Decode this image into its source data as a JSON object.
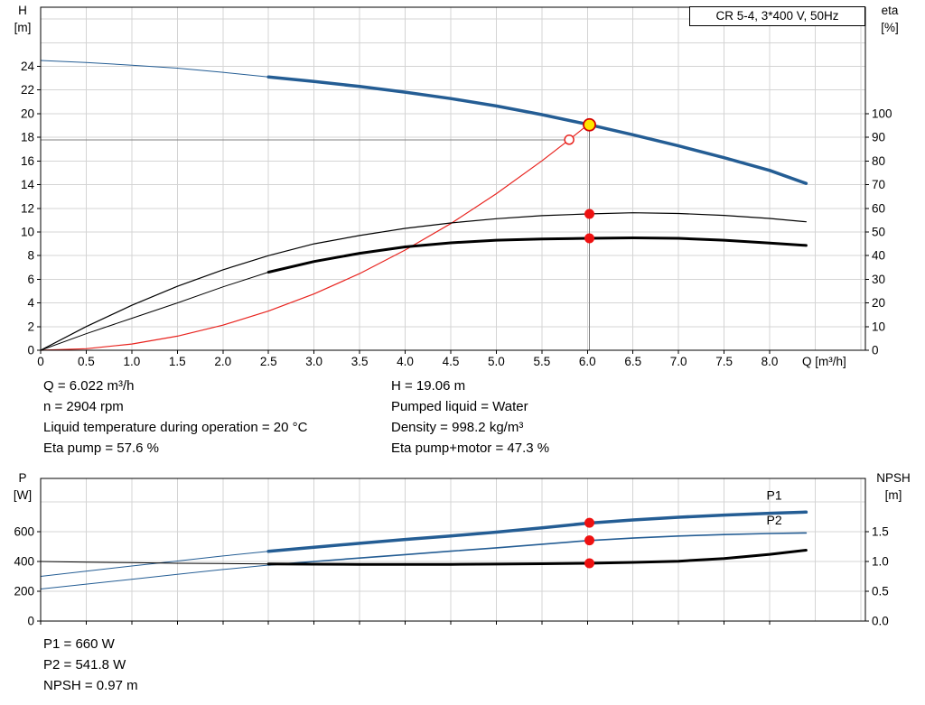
{
  "title_box": {
    "label": "CR 5-4, 3*400 V, 50Hz"
  },
  "info_top": {
    "left": [
      "Q = 6.022 m³/h",
      "n = 2904 rpm",
      "Liquid temperature during operation = 20 °C",
      "Eta pump = 57.6 %"
    ],
    "right": [
      "H = 19.06 m",
      "Pumped liquid = Water",
      "Density = 998.2 kg/m³",
      "Eta pump+motor = 47.3 %"
    ]
  },
  "info_bottom": [
    "P1 = 660 W",
    "P2 = 541.8 W",
    "NPSH = 0.97 m"
  ],
  "colors": {
    "curve_blue": "#245d94",
    "curve_red": "#e8231e",
    "curve_black": "#000000",
    "marker_red": "#ee1111",
    "marker_yellow": "#ffe600",
    "guide_gray": "#808080",
    "grid_gray": "#d4d4d4"
  },
  "chart_data": [
    {
      "id": "head-chart",
      "type": "line",
      "title": "CR 5-4, 3*400 V, 50Hz",
      "grid_color": "#d4d4d4",
      "x_axis": {
        "label": "Q [m³/h]",
        "min": 0,
        "max": 9.05,
        "show_tick_labels": true,
        "grid": [
          0.5,
          1,
          1.5,
          2,
          2.5,
          3,
          3.5,
          4,
          4.5,
          5,
          5.5,
          6,
          6.5,
          7,
          7.5,
          8,
          8.5,
          9
        ],
        "ticks": [
          [
            0,
            "0"
          ],
          [
            0.5,
            "0.5"
          ],
          [
            1,
            "1.0"
          ],
          [
            1.5,
            "1.5"
          ],
          [
            2,
            "2.0"
          ],
          [
            2.5,
            "2.5"
          ],
          [
            3,
            "3.0"
          ],
          [
            3.5,
            "3.5"
          ],
          [
            4,
            "4.0"
          ],
          [
            4.5,
            "4.5"
          ],
          [
            5,
            "5.0"
          ],
          [
            5.5,
            "5.5"
          ],
          [
            6,
            "6.0"
          ],
          [
            6.5,
            "6.5"
          ],
          [
            7,
            "7.0"
          ],
          [
            7.5,
            "7.5"
          ],
          [
            8,
            "8.0"
          ]
        ]
      },
      "y_left": {
        "label": "H",
        "unit": "[m]",
        "min": 0,
        "max": 29,
        "grid": [
          2,
          4,
          6,
          8,
          10,
          12,
          14,
          16,
          18,
          20,
          22,
          24,
          26,
          28
        ],
        "ticks": [
          [
            0,
            "0"
          ],
          [
            2,
            "2"
          ],
          [
            4,
            "4"
          ],
          [
            6,
            "6"
          ],
          [
            8,
            "8"
          ],
          [
            10,
            "10"
          ],
          [
            12,
            "12"
          ],
          [
            14,
            "14"
          ],
          [
            16,
            "16"
          ],
          [
            18,
            "18"
          ],
          [
            20,
            "20"
          ],
          [
            22,
            "22"
          ],
          [
            24,
            "24"
          ]
        ]
      },
      "y_right": {
        "label": "eta",
        "unit": "[%]",
        "min": 0,
        "max": 145,
        "ticks": [
          [
            0,
            "0"
          ],
          [
            10,
            "10"
          ],
          [
            20,
            "20"
          ],
          [
            30,
            "30"
          ],
          [
            40,
            "40"
          ],
          [
            50,
            "50"
          ],
          [
            60,
            "60"
          ],
          [
            70,
            "70"
          ],
          [
            80,
            "80"
          ],
          [
            90,
            "90"
          ],
          [
            100,
            "100"
          ]
        ]
      },
      "guides": [
        {
          "type": "h",
          "axis": "left",
          "y": 17.8,
          "x0": 0,
          "x1": 5.8,
          "color": "#808080",
          "name": "requested-head-guide"
        },
        {
          "type": "v",
          "axis": "left",
          "x": 6.022,
          "y0": 0,
          "y1": 19.06,
          "color": "#808080",
          "name": "duty-flow-guide"
        }
      ],
      "series": [
        {
          "name": "hq-curve-extension",
          "axis": "left",
          "color": "#245d94",
          "width": 1,
          "points": [
            [
              0,
              24.5
            ],
            [
              0.5,
              24.32
            ],
            [
              1,
              24.1
            ],
            [
              1.5,
              23.85
            ],
            [
              2,
              23.5
            ],
            [
              2.5,
              23.1
            ]
          ]
        },
        {
          "name": "hq-curve",
          "axis": "left",
          "color": "#245d94",
          "width": 3.5,
          "points": [
            [
              2.5,
              23.1
            ],
            [
              3,
              22.72
            ],
            [
              3.5,
              22.3
            ],
            [
              4,
              21.82
            ],
            [
              4.5,
              21.28
            ],
            [
              5,
              20.65
            ],
            [
              5.5,
              19.92
            ],
            [
              6,
              19.1
            ],
            [
              6.5,
              18.22
            ],
            [
              7,
              17.28
            ],
            [
              7.5,
              16.28
            ],
            [
              8,
              15.2
            ],
            [
              8.4,
              14.1
            ]
          ]
        },
        {
          "name": "system-curve",
          "axis": "left",
          "color": "#e8231e",
          "width": 1.2,
          "points": [
            [
              0,
              0
            ],
            [
              0.5,
              0.13
            ],
            [
              1,
              0.53
            ],
            [
              1.5,
              1.19
            ],
            [
              2,
              2.12
            ],
            [
              2.5,
              3.31
            ],
            [
              3,
              4.76
            ],
            [
              3.5,
              6.48
            ],
            [
              4,
              8.47
            ],
            [
              4.5,
              10.71
            ],
            [
              5,
              13.23
            ],
            [
              5.5,
              16.01
            ],
            [
              5.8,
              17.8
            ],
            [
              6.03,
              19.22
            ]
          ]
        },
        {
          "name": "eta-pump-curve",
          "axis": "right",
          "color": "#000000",
          "width": 1.2,
          "points": [
            [
              0,
              0
            ],
            [
              0.5,
              10
            ],
            [
              1,
              19
            ],
            [
              1.5,
              27
            ],
            [
              2,
              34
            ],
            [
              2.5,
              40
            ],
            [
              3,
              45
            ],
            [
              3.5,
              48.5
            ],
            [
              4,
              51.5
            ],
            [
              4.5,
              53.8
            ],
            [
              5,
              55.6
            ],
            [
              5.5,
              56.9
            ],
            [
              6,
              57.6
            ],
            [
              6.5,
              58.1
            ],
            [
              7,
              57.8
            ],
            [
              7.5,
              57
            ],
            [
              8,
              55.7
            ],
            [
              8.4,
              54.3
            ]
          ]
        },
        {
          "name": "eta-pump-motor-extension",
          "axis": "right",
          "color": "#000000",
          "width": 1,
          "points": [
            [
              0,
              0
            ],
            [
              0.5,
              7
            ],
            [
              1,
              13.5
            ],
            [
              1.5,
              20
            ],
            [
              2,
              26.8
            ],
            [
              2.5,
              33
            ]
          ]
        },
        {
          "name": "eta-pump-motor-curve",
          "axis": "right",
          "color": "#000000",
          "width": 3,
          "points": [
            [
              2.5,
              33
            ],
            [
              3,
              37.5
            ],
            [
              3.5,
              41
            ],
            [
              4,
              43.7
            ],
            [
              4.5,
              45.4
            ],
            [
              5,
              46.5
            ],
            [
              5.5,
              47
            ],
            [
              6,
              47.3
            ],
            [
              6.5,
              47.5
            ],
            [
              7,
              47.3
            ],
            [
              7.5,
              46.5
            ],
            [
              8,
              45.3
            ],
            [
              8.4,
              44.3
            ]
          ]
        }
      ],
      "markers": [
        {
          "name": "requested-duty-point",
          "axis": "left",
          "x": 5.8,
          "y": 17.8,
          "r": 5,
          "fill": "#ffffff",
          "stroke": "#e8231e",
          "stroke_width": 1.5
        },
        {
          "name": "duty-point",
          "axis": "left",
          "x": 6.022,
          "y": 19.06,
          "r": 6.5,
          "fill": "#ffe600",
          "stroke": "#d40000",
          "stroke_width": 1.8
        },
        {
          "name": "eta-pump-duty-point",
          "axis": "right",
          "x": 6.022,
          "y": 57.6,
          "r": 5.5,
          "fill": "#ee1111"
        },
        {
          "name": "eta-pump-motor-duty-point",
          "axis": "right",
          "x": 6.022,
          "y": 47.3,
          "r": 5.5,
          "fill": "#ee1111"
        }
      ],
      "series_labels": []
    },
    {
      "id": "power-chart",
      "type": "line",
      "grid_color": "#d4d4d4",
      "x_axis": {
        "min": 0,
        "max": 9.05,
        "show_tick_labels": false,
        "grid": [
          0.5,
          1,
          1.5,
          2,
          2.5,
          3,
          3.5,
          4,
          4.5,
          5,
          5.5,
          6,
          6.5,
          7,
          7.5,
          8,
          8.5,
          9
        ],
        "ticks": [
          [
            0,
            ""
          ],
          [
            0.5,
            ""
          ],
          [
            1,
            ""
          ],
          [
            1.5,
            ""
          ],
          [
            2,
            ""
          ],
          [
            2.5,
            ""
          ],
          [
            3,
            ""
          ],
          [
            3.5,
            ""
          ],
          [
            4,
            ""
          ],
          [
            4.5,
            ""
          ],
          [
            5,
            ""
          ],
          [
            5.5,
            ""
          ],
          [
            6,
            ""
          ],
          [
            6.5,
            ""
          ],
          [
            7,
            ""
          ],
          [
            7.5,
            ""
          ],
          [
            8,
            ""
          ]
        ]
      },
      "y_left": {
        "label": "P",
        "unit": "[W]",
        "min": 0,
        "max": 958,
        "grid": [
          200,
          400,
          600,
          800
        ],
        "ticks": [
          [
            0,
            "0"
          ],
          [
            200,
            "200"
          ],
          [
            400,
            "400"
          ],
          [
            600,
            "600"
          ]
        ]
      },
      "y_right": {
        "label": "NPSH",
        "unit": "[m]",
        "min": 0,
        "max": 2.395,
        "ticks": [
          [
            0,
            "0.0"
          ],
          [
            0.5,
            "0.5"
          ],
          [
            1,
            "1.0"
          ],
          [
            1.5,
            "1.5"
          ]
        ]
      },
      "guides": [],
      "series": [
        {
          "name": "p1-curve-extension",
          "axis": "left",
          "color": "#245d94",
          "width": 1,
          "points": [
            [
              0,
              300
            ],
            [
              0.5,
              335
            ],
            [
              1,
              370
            ],
            [
              1.5,
              403
            ],
            [
              2,
              437
            ],
            [
              2.5,
              468
            ]
          ]
        },
        {
          "name": "p1-curve",
          "axis": "left",
          "color": "#245d94",
          "width": 3.5,
          "points": [
            [
              2.5,
              468
            ],
            [
              3,
              496
            ],
            [
              3.5,
              522
            ],
            [
              4,
              548
            ],
            [
              4.5,
              572
            ],
            [
              5,
              597
            ],
            [
              5.5,
              626
            ],
            [
              6,
              657
            ],
            [
              6.5,
              679
            ],
            [
              7,
              697
            ],
            [
              7.5,
              712
            ],
            [
              8,
              724
            ],
            [
              8.4,
              732
            ]
          ]
        },
        {
          "name": "p2-curve-extension",
          "axis": "left",
          "color": "#245d94",
          "width": 1,
          "points": [
            [
              0,
              215
            ],
            [
              0.5,
              248
            ],
            [
              1,
              281
            ],
            [
              1.5,
              314
            ],
            [
              2,
              346
            ],
            [
              2.5,
              376
            ]
          ]
        },
        {
          "name": "p2-curve",
          "axis": "left",
          "color": "#245d94",
          "width": 1.6,
          "points": [
            [
              2.5,
              376
            ],
            [
              3,
              400
            ],
            [
              3.5,
              423
            ],
            [
              4,
              446
            ],
            [
              4.5,
              469
            ],
            [
              5,
              492
            ],
            [
              5.5,
              516
            ],
            [
              6,
              540
            ],
            [
              6.5,
              557
            ],
            [
              7,
              571
            ],
            [
              7.5,
              581
            ],
            [
              8,
              588
            ],
            [
              8.4,
              592
            ]
          ]
        },
        {
          "name": "npsh-curve-extension",
          "axis": "right",
          "color": "#000000",
          "width": 1,
          "points": [
            [
              0,
              1.0
            ],
            [
              0.5,
              0.99
            ],
            [
              1,
              0.98
            ],
            [
              1.5,
              0.97
            ],
            [
              2,
              0.965
            ],
            [
              2.5,
              0.96
            ]
          ]
        },
        {
          "name": "npsh-curve",
          "axis": "right",
          "color": "#000000",
          "width": 3,
          "points": [
            [
              2.5,
              0.96
            ],
            [
              3,
              0.955
            ],
            [
              3.5,
              0.952
            ],
            [
              4,
              0.95
            ],
            [
              4.5,
              0.952
            ],
            [
              5,
              0.956
            ],
            [
              5.5,
              0.962
            ],
            [
              6,
              0.97
            ],
            [
              6.5,
              0.985
            ],
            [
              7,
              1.005
            ],
            [
              7.5,
              1.05
            ],
            [
              8,
              1.12
            ],
            [
              8.4,
              1.19
            ]
          ]
        }
      ],
      "markers": [
        {
          "name": "p1-duty-point",
          "axis": "left",
          "x": 6.022,
          "y": 660,
          "r": 5.5,
          "fill": "#ee1111"
        },
        {
          "name": "p2-duty-point",
          "axis": "left",
          "x": 6.022,
          "y": 541.8,
          "r": 5.5,
          "fill": "#ee1111"
        },
        {
          "name": "npsh-duty-point",
          "axis": "right",
          "x": 6.022,
          "y": 0.97,
          "r": 5.5,
          "fill": "#ee1111"
        }
      ],
      "series_labels": [
        {
          "name": "p1-label",
          "text": "P1",
          "axis": "left",
          "x": 8.05,
          "y": 815,
          "color": "#245d94"
        },
        {
          "name": "p2-label",
          "text": "P2",
          "axis": "left",
          "x": 8.05,
          "y": 648,
          "color": "#245d94"
        }
      ]
    }
  ]
}
